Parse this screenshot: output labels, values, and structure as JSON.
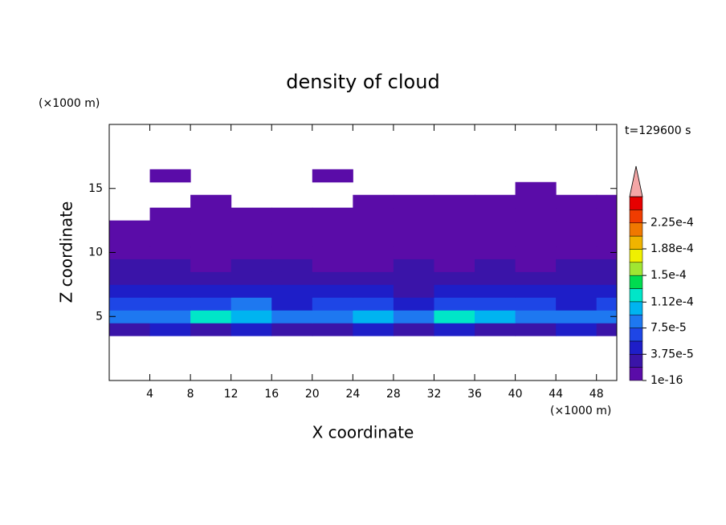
{
  "chart_data": {
    "type": "contour",
    "title": "density of cloud",
    "y_unit": "(×1000 m)",
    "x_unit": "(×1000 m)",
    "xlabel": "X coordinate",
    "ylabel": "Z coordinate",
    "time_label": "t=129600 s",
    "xlim": [
      0,
      50
    ],
    "ylim": [
      0,
      20
    ],
    "xticks": [
      4,
      8,
      12,
      16,
      20,
      24,
      28,
      32,
      36,
      40,
      44,
      48
    ],
    "yticks": [
      5,
      10,
      15
    ],
    "x": [
      2,
      6,
      10,
      14,
      18,
      22,
      26,
      30,
      34,
      38,
      42,
      46,
      50
    ],
    "z": [
      4,
      5,
      6,
      7,
      8,
      9,
      10,
      11,
      12,
      13,
      14,
      15,
      16
    ],
    "values": [
      [
        3e-05,
        4e-05,
        3e-05,
        4e-05,
        3e-05,
        3e-05,
        4e-05,
        3e-05,
        4e-05,
        3e-05,
        3e-05,
        4e-05,
        3e-05
      ],
      [
        8e-05,
        9e-05,
        0.00012,
        0.00011,
        9e-05,
        8e-05,
        0.00011,
        9e-05,
        0.00012,
        0.0001,
        8e-05,
        9e-05,
        8e-05
      ],
      [
        6e-05,
        7e-05,
        6e-05,
        8e-05,
        5e-05,
        6e-05,
        7e-05,
        5e-05,
        6e-05,
        7e-05,
        6e-05,
        5e-05,
        6e-05
      ],
      [
        4e-05,
        5e-05,
        4e-05,
        4e-05,
        5e-05,
        4e-05,
        4e-05,
        3e-05,
        4e-05,
        5e-05,
        4e-05,
        4e-05,
        5e-05
      ],
      [
        3e-05,
        2.5e-05,
        3e-05,
        2.5e-05,
        3e-05,
        2.5e-05,
        2e-05,
        2.5e-05,
        3e-05,
        2.5e-05,
        3e-05,
        2.5e-05,
        3e-05
      ],
      [
        2e-05,
        2e-05,
        1.5e-05,
        2e-05,
        2e-05,
        1.5e-05,
        1.5e-05,
        2e-05,
        1.5e-05,
        2e-05,
        1.5e-05,
        2e-05,
        2e-05
      ],
      [
        1.5e-05,
        1.2e-05,
        1.5e-05,
        1.2e-05,
        1e-05,
        1.2e-05,
        1e-05,
        1e-05,
        1.2e-05,
        1e-05,
        1e-05,
        1.5e-05,
        1.2e-05
      ],
      [
        5e-06,
        5e-06,
        5e-06,
        5e-06,
        5e-06,
        5e-06,
        5e-06,
        5e-06,
        5e-06,
        5e-06,
        5e-06,
        5e-06,
        5e-06
      ],
      [
        3e-06,
        3e-06,
        3e-06,
        3e-06,
        3e-06,
        3e-06,
        3e-06,
        3e-06,
        3e-06,
        3e-06,
        3e-06,
        3e-06,
        3e-06
      ],
      [
        null,
        3e-06,
        3e-06,
        3e-06,
        2e-06,
        2e-06,
        2e-06,
        2e-06,
        2e-06,
        2e-06,
        2e-06,
        2e-06,
        2e-06
      ],
      [
        null,
        null,
        2e-06,
        null,
        null,
        null,
        2e-06,
        2e-06,
        2e-06,
        2e-06,
        2e-06,
        2e-06,
        2e-06
      ],
      [
        null,
        null,
        null,
        null,
        null,
        null,
        null,
        null,
        null,
        null,
        2e-06,
        null,
        null
      ],
      [
        null,
        2e-06,
        null,
        null,
        null,
        2e-06,
        null,
        null,
        null,
        null,
        null,
        null,
        null
      ]
    ],
    "colorbar": {
      "levels": [
        1e-16,
        1.875e-05,
        3.75e-05,
        5.625e-05,
        7.5e-05,
        9.375e-05,
        0.0001125,
        0.00013125,
        0.00015,
        0.00016875,
        0.0001875,
        0.00020625,
        0.000225,
        0.00024375,
        0.0002625
      ],
      "colors": [
        "#5a0ca8",
        "#3a14a8",
        "#1e1ec8",
        "#1e46e6",
        "#1e78f0",
        "#00b4f0",
        "#00e6c8",
        "#00dc50",
        "#a0e632",
        "#f0f000",
        "#f0b400",
        "#f07800",
        "#f03c00",
        "#e60000"
      ],
      "over_color": "#f4a6a6",
      "ticks": [
        {
          "value": 1e-16,
          "label": "1e-16"
        },
        {
          "value": 3.75e-05,
          "label": "3.75e-5"
        },
        {
          "value": 7.5e-05,
          "label": "7.5e-5"
        },
        {
          "value": 0.000112,
          "label": "1.12e-4"
        },
        {
          "value": 0.00015,
          "label": "1.5e-4"
        },
        {
          "value": 0.000188,
          "label": "1.88e-4"
        },
        {
          "value": 0.000225,
          "label": "2.25e-4"
        }
      ]
    }
  }
}
